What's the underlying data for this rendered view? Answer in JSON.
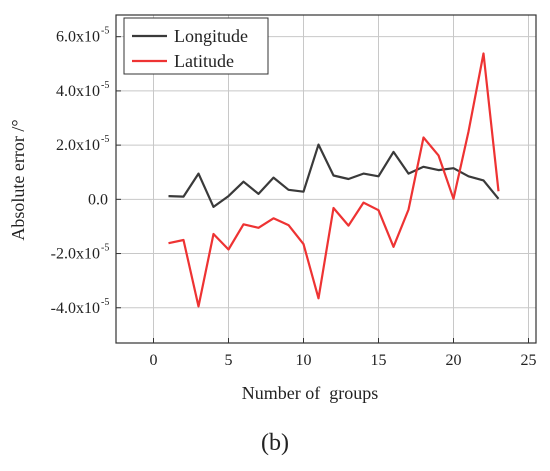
{
  "chart_data": {
    "type": "line",
    "xlabel": "Number of  groups",
    "ylabel": "Absolute error /°",
    "xlim": [
      -2.5,
      25.5
    ],
    "ylim": [
      -5.3,
      6.8
    ],
    "y_exponent": "-5",
    "grid": true,
    "legend_position": "top-left",
    "x_ticks": [
      0,
      5,
      10,
      15,
      20,
      25
    ],
    "y_ticks": [
      {
        "value": 6.0,
        "label": "6.0x10"
      },
      {
        "value": 4.0,
        "label": "4.0x10"
      },
      {
        "value": 2.0,
        "label": "2.0x10"
      },
      {
        "value": 0.0,
        "label": "0.0"
      },
      {
        "value": -2.0,
        "label": "-2.0x10"
      },
      {
        "value": -4.0,
        "label": "-4.0x10"
      }
    ],
    "series": [
      {
        "name": "Longitude",
        "color": "#3a3a3a",
        "x": [
          1,
          2,
          3,
          4,
          5,
          6,
          7,
          8,
          9,
          10,
          11,
          12,
          13,
          14,
          15,
          16,
          17,
          18,
          19,
          20,
          21,
          22,
          23
        ],
        "values": [
          0.12,
          0.1,
          0.95,
          -0.28,
          0.12,
          0.65,
          0.2,
          0.8,
          0.35,
          0.28,
          2.02,
          0.88,
          0.75,
          0.95,
          0.85,
          1.75,
          0.95,
          1.2,
          1.08,
          1.15,
          0.85,
          0.7,
          0.02
        ]
      },
      {
        "name": "Latitude",
        "color": "#ee3333",
        "x": [
          1,
          2,
          3,
          4,
          5,
          6,
          7,
          8,
          9,
          10,
          11,
          12,
          13,
          14,
          15,
          16,
          17,
          18,
          19,
          20,
          21,
          22,
          23
        ],
        "values": [
          -1.62,
          -1.5,
          -3.95,
          -1.28,
          -1.85,
          -0.92,
          -1.05,
          -0.7,
          -0.95,
          -1.65,
          -3.65,
          -0.32,
          -0.97,
          -0.12,
          -0.4,
          -1.75,
          -0.38,
          2.28,
          1.62,
          0.02,
          2.5,
          5.38,
          0.3
        ]
      }
    ]
  },
  "caption": "(b)"
}
